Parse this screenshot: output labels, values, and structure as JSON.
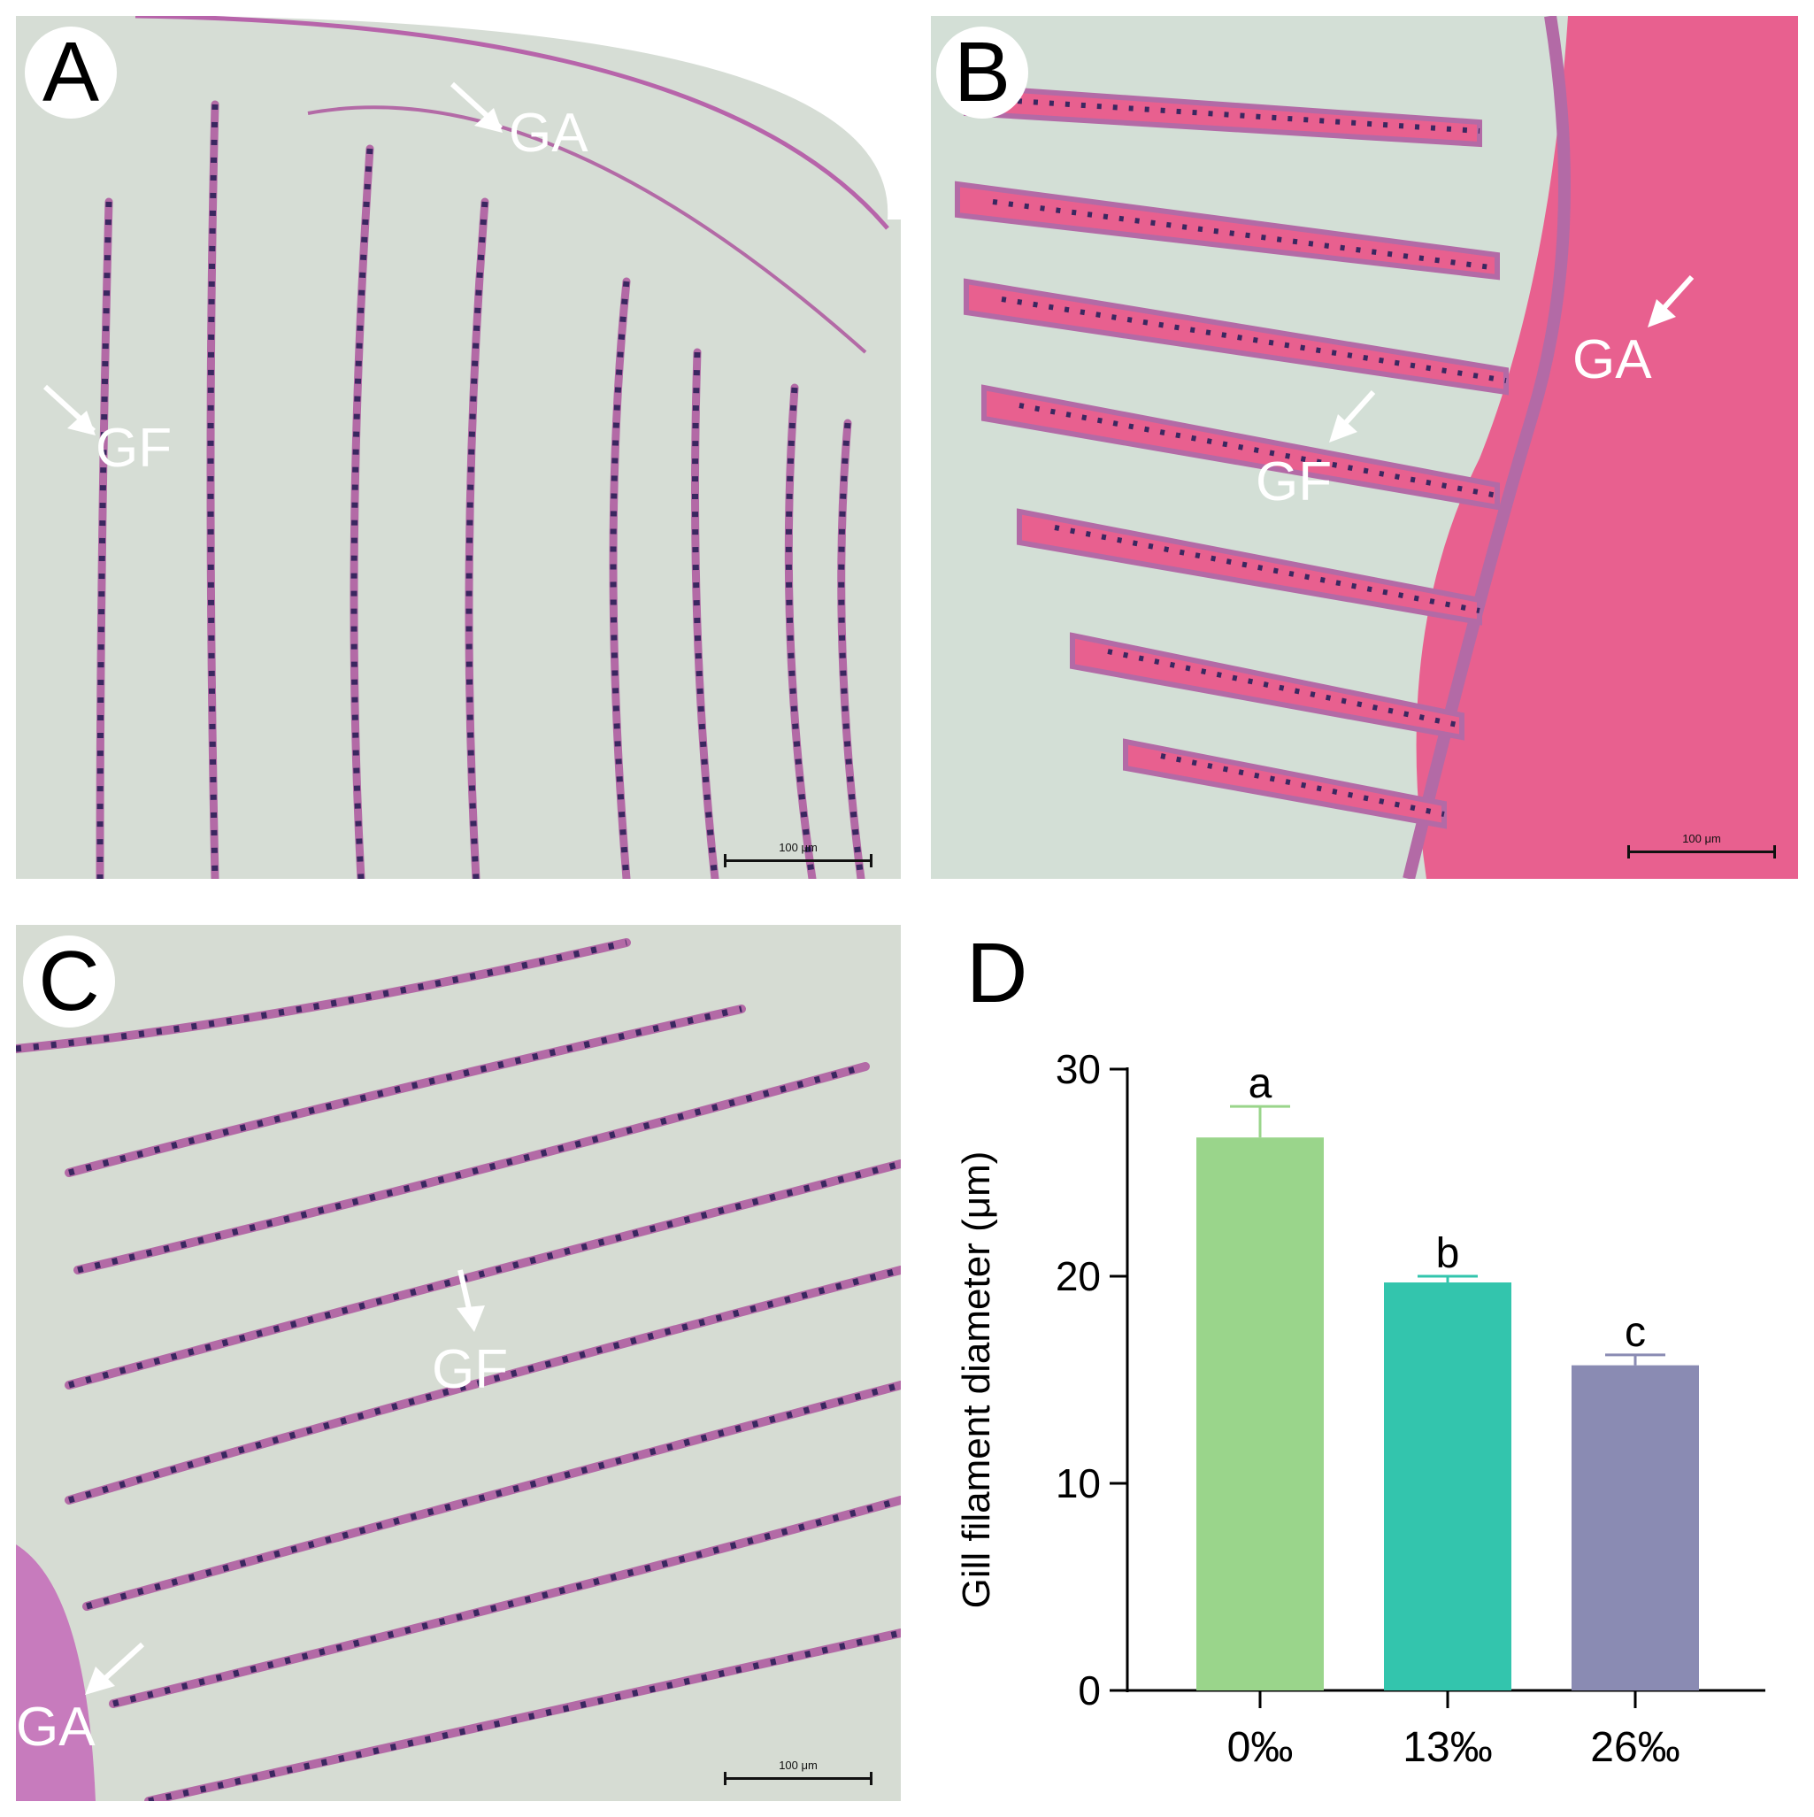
{
  "panels": {
    "A": {
      "letter": "A",
      "labels": {
        "ga": "GA",
        "gf": "GF"
      },
      "scale": "100 μm"
    },
    "B": {
      "letter": "B",
      "labels": {
        "ga": "GA",
        "gf": "GF"
      },
      "scale": "100 μm"
    },
    "C": {
      "letter": "C",
      "labels": {
        "ga": "GA",
        "gf": "GF"
      },
      "scale": "100 μm"
    },
    "D": {
      "letter": "D"
    }
  },
  "colors": {
    "slide_background": "#d3dbd3",
    "tissue_pink": "#c77bbd",
    "nuclei": "#3a2760",
    "blood_pink": "#e8608f",
    "bar_0": "#9ad58b",
    "bar_13": "#33c5ad",
    "bar_26": "#8a8bb3"
  },
  "chart_data": {
    "type": "bar",
    "categories": [
      "0‰",
      "13‰",
      "26‰"
    ],
    "values": [
      26.7,
      19.7,
      15.7
    ],
    "errors": [
      1.5,
      0.3,
      0.5
    ],
    "significance": [
      "a",
      "b",
      "c"
    ],
    "bar_colors": [
      "#9ad58b",
      "#33c5ad",
      "#8a8bb3"
    ],
    "ylabel": "Gill filament diameter (μm)",
    "ylim": [
      0,
      30
    ],
    "yticks": [
      0,
      10,
      20,
      30
    ],
    "grid": false
  }
}
